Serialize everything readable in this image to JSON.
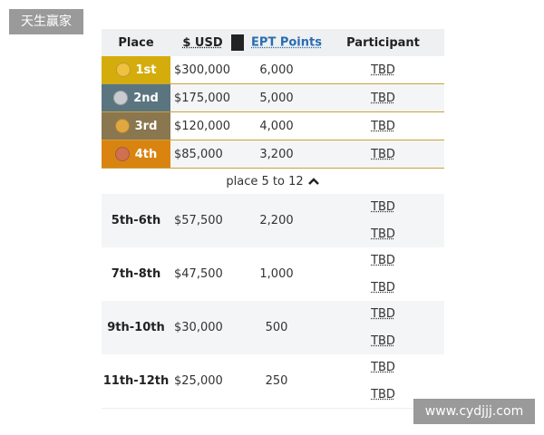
{
  "watermarks": {
    "top_left": "天生赢家",
    "bottom_right": "www.cydjjj.com"
  },
  "header": {
    "place": "Place",
    "usd": "$ USD",
    "ept_points": "EPT Points",
    "participant": "Participant"
  },
  "top_rows": [
    {
      "place": "1st",
      "usd": "$300,000",
      "points": "6,000",
      "participant": "TBD",
      "color": "#d4ad0c",
      "medal": "#f0c040"
    },
    {
      "place": "2nd",
      "usd": "$175,000",
      "points": "5,000",
      "participant": "TBD",
      "color": "#5b7580",
      "medal": "#c8ccd0"
    },
    {
      "place": "3rd",
      "usd": "$120,000",
      "points": "4,000",
      "participant": "TBD",
      "color": "#8a7750",
      "medal": "#e0a840"
    },
    {
      "place": "4th",
      "usd": "$85,000",
      "points": "3,200",
      "participant": "TBD",
      "color": "#d98410",
      "medal": "#d07050"
    }
  ],
  "toggle": {
    "label": "place 5 to 12",
    "icon": "chevron-up-icon"
  },
  "group_rows": [
    {
      "place": "5th-6th",
      "usd": "$57,500",
      "points": "2,200",
      "participants": [
        "TBD",
        "TBD"
      ]
    },
    {
      "place": "7th-8th",
      "usd": "$47,500",
      "points": "1,000",
      "participants": [
        "TBD",
        "TBD"
      ]
    },
    {
      "place": "9th-10th",
      "usd": "$30,000",
      "points": "500",
      "participants": [
        "TBD",
        "TBD"
      ]
    },
    {
      "place": "11th-12th",
      "usd": "$25,000",
      "points": "250",
      "participants": [
        "TBD",
        "TBD"
      ]
    }
  ]
}
